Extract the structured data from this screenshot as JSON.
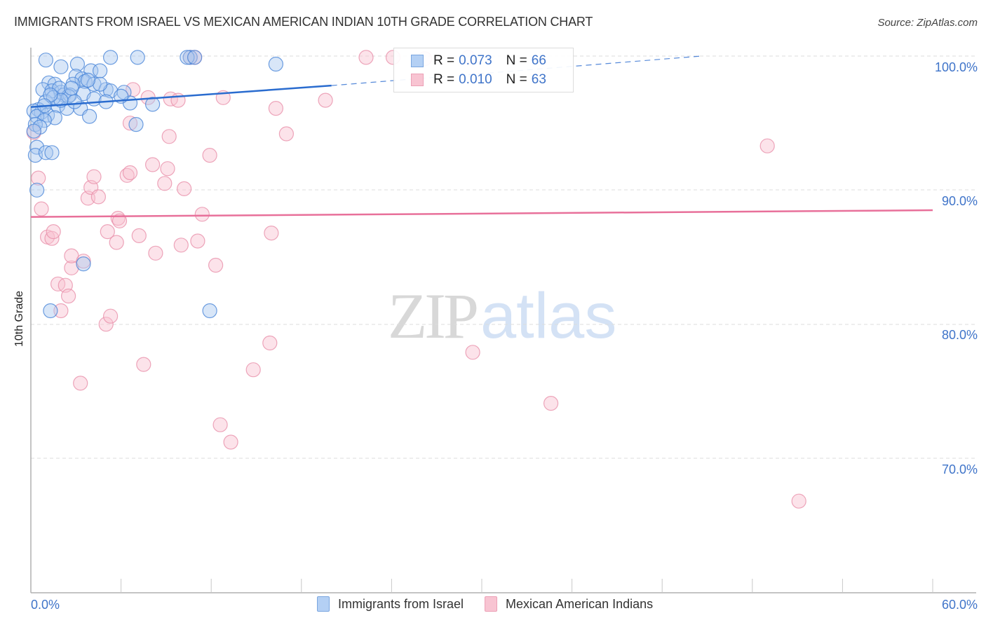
{
  "header": {
    "title": "IMMIGRANTS FROM ISRAEL VS MEXICAN AMERICAN INDIAN 10TH GRADE CORRELATION CHART",
    "source": "Source: ZipAtlas.com"
  },
  "axes": {
    "y_label": "10th Grade",
    "y_ticks": [
      "100.0%",
      "90.0%",
      "80.0%",
      "70.0%"
    ],
    "x_ticks": [
      "0.0%",
      "60.0%"
    ]
  },
  "legend": {
    "series1": {
      "r_label": "R = ",
      "r_value": "0.073",
      "n_label": "N = ",
      "n_value": "66"
    },
    "series2": {
      "r_label": "R = ",
      "r_value": "0.010",
      "n_label": "N = ",
      "n_value": "63"
    }
  },
  "bottom_legend": {
    "series1": "Immigrants from Israel",
    "series2": "Mexican American Indians"
  },
  "watermark": {
    "zip": "ZIP",
    "atlas": "atlas"
  },
  "colors": {
    "series1_fill": "#a8c8f0",
    "series1_stroke": "#4a86d8",
    "series1_line": "#2a6ccf",
    "series2_fill": "#f8c0d0",
    "series2_stroke": "#e890aa",
    "series2_line": "#e8709a",
    "tick_text": "#3f74c9"
  },
  "chart_data": {
    "type": "scatter",
    "title": "IMMIGRANTS FROM ISRAEL VS MEXICAN AMERICAN INDIAN 10TH GRADE CORRELATION CHART",
    "xlabel": "",
    "ylabel": "10th Grade",
    "xlim": [
      0,
      60
    ],
    "ylim": [
      60,
      101
    ],
    "y_ticks": [
      70,
      80,
      90,
      100
    ],
    "x_tick_labels": [
      "0.0%",
      "60.0%"
    ],
    "grid": true,
    "legend_position": "top-center",
    "series": [
      {
        "name": "Immigrants from Israel",
        "R": 0.073,
        "N": 66,
        "trend": {
          "x": [
            0,
            20,
            44.6
          ],
          "y": [
            96.2,
            97.8,
            100.0
          ],
          "solid_until_x": 20
        },
        "points": [
          [
            1.0,
            99.7
          ],
          [
            2.0,
            99.2
          ],
          [
            3.1,
            99.4
          ],
          [
            5.3,
            99.9
          ],
          [
            7.1,
            99.9
          ],
          [
            10.6,
            99.9
          ],
          [
            10.4,
            99.9
          ],
          [
            10.9,
            99.9
          ],
          [
            16.3,
            99.4
          ],
          [
            3.0,
            98.5
          ],
          [
            4.0,
            98.9
          ],
          [
            3.4,
            98.3
          ],
          [
            3.6,
            98.1
          ],
          [
            2.8,
            97.9
          ],
          [
            4.2,
            97.9
          ],
          [
            1.2,
            98.0
          ],
          [
            1.6,
            97.9
          ],
          [
            0.8,
            97.5
          ],
          [
            1.4,
            97.4
          ],
          [
            2.0,
            97.3
          ],
          [
            2.2,
            97.1
          ],
          [
            2.6,
            97.1
          ],
          [
            3.5,
            97.2
          ],
          [
            5.0,
            97.5
          ],
          [
            5.3,
            97.4
          ],
          [
            6.2,
            97.3
          ],
          [
            1.0,
            96.6
          ],
          [
            1.8,
            96.3
          ],
          [
            2.4,
            96.1
          ],
          [
            3.3,
            96.1
          ],
          [
            4.2,
            96.8
          ],
          [
            6.6,
            96.5
          ],
          [
            0.5,
            96.0
          ],
          [
            0.7,
            95.8
          ],
          [
            1.1,
            95.6
          ],
          [
            1.6,
            95.4
          ],
          [
            0.2,
            95.9
          ],
          [
            0.4,
            95.5
          ],
          [
            0.9,
            95.2
          ],
          [
            0.3,
            94.9
          ],
          [
            0.6,
            94.7
          ],
          [
            0.2,
            94.4
          ],
          [
            3.9,
            95.5
          ],
          [
            8.1,
            96.4
          ],
          [
            7.0,
            94.9
          ],
          [
            0.4,
            93.2
          ],
          [
            0.3,
            92.6
          ],
          [
            1.0,
            92.8
          ],
          [
            1.4,
            92.8
          ],
          [
            0.4,
            90.0
          ],
          [
            3.5,
            84.5
          ],
          [
            1.3,
            81.0
          ],
          [
            11.9,
            81.0
          ],
          [
            2.5,
            97.0
          ],
          [
            1.9,
            97.6
          ],
          [
            2.9,
            96.6
          ],
          [
            1.5,
            96.9
          ],
          [
            4.6,
            97.9
          ],
          [
            2.0,
            96.7
          ],
          [
            1.3,
            97.1
          ],
          [
            0.9,
            96.3
          ],
          [
            2.7,
            97.6
          ],
          [
            3.8,
            98.2
          ],
          [
            4.6,
            98.9
          ],
          [
            5.0,
            96.6
          ],
          [
            6.0,
            97.0
          ]
        ]
      },
      {
        "name": "Mexican American Indians",
        "R": 0.01,
        "N": 63,
        "trend": {
          "x": [
            0,
            60
          ],
          "y": [
            88.0,
            88.5
          ]
        },
        "points": [
          [
            0.2,
            94.3
          ],
          [
            0.5,
            90.9
          ],
          [
            0.7,
            88.6
          ],
          [
            1.1,
            86.5
          ],
          [
            1.4,
            86.4
          ],
          [
            1.5,
            86.9
          ],
          [
            1.8,
            83.0
          ],
          [
            2.0,
            81.0
          ],
          [
            2.3,
            82.9
          ],
          [
            2.5,
            82.1
          ],
          [
            2.7,
            84.2
          ],
          [
            2.7,
            85.1
          ],
          [
            3.3,
            75.6
          ],
          [
            3.5,
            84.7
          ],
          [
            3.8,
            89.4
          ],
          [
            4.0,
            90.2
          ],
          [
            4.2,
            91.0
          ],
          [
            4.5,
            89.5
          ],
          [
            5.1,
            86.9
          ],
          [
            5.0,
            80.0
          ],
          [
            5.3,
            80.6
          ],
          [
            5.7,
            86.1
          ],
          [
            5.8,
            87.9
          ],
          [
            5.9,
            87.7
          ],
          [
            6.4,
            91.1
          ],
          [
            6.6,
            95.0
          ],
          [
            6.6,
            91.3
          ],
          [
            6.8,
            97.5
          ],
          [
            7.2,
            86.6
          ],
          [
            7.5,
            77.0
          ],
          [
            7.8,
            96.9
          ],
          [
            8.1,
            91.9
          ],
          [
            8.3,
            85.3
          ],
          [
            8.9,
            90.5
          ],
          [
            9.1,
            91.6
          ],
          [
            9.3,
            96.8
          ],
          [
            9.2,
            94.0
          ],
          [
            9.8,
            96.7
          ],
          [
            10.0,
            85.9
          ],
          [
            10.2,
            90.1
          ],
          [
            10.6,
            99.9
          ],
          [
            11.1,
            86.2
          ],
          [
            11.4,
            88.2
          ],
          [
            11.9,
            92.6
          ],
          [
            12.3,
            84.4
          ],
          [
            12.6,
            72.5
          ],
          [
            12.8,
            96.9
          ],
          [
            13.3,
            71.2
          ],
          [
            14.8,
            76.6
          ],
          [
            15.9,
            78.6
          ],
          [
            16.0,
            86.8
          ],
          [
            16.3,
            96.1
          ],
          [
            17.0,
            94.2
          ],
          [
            19.6,
            96.7
          ],
          [
            22.3,
            99.9
          ],
          [
            24.1,
            99.9
          ],
          [
            29.1,
            99.9
          ],
          [
            29.4,
            77.9
          ],
          [
            34.6,
            74.1
          ],
          [
            49.0,
            93.3
          ],
          [
            51.1,
            66.8
          ],
          [
            26.2,
            99.8
          ],
          [
            10.9,
            99.9
          ]
        ]
      }
    ]
  }
}
